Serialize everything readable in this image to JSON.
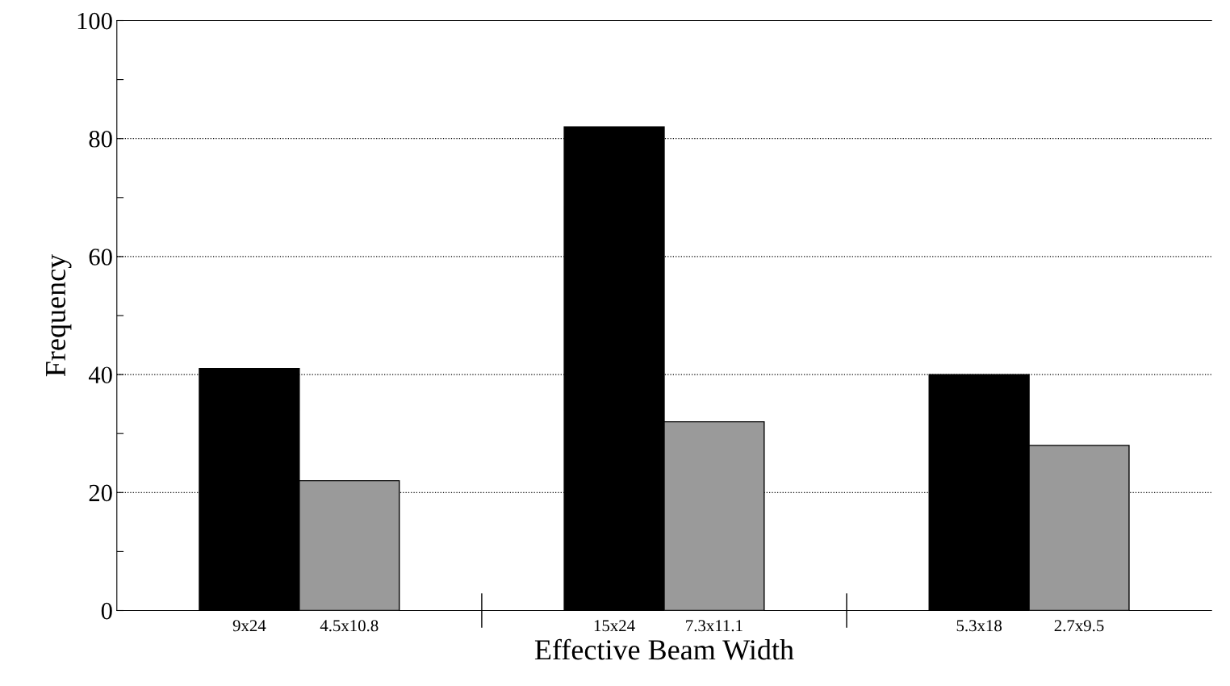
{
  "chart_data": {
    "type": "bar",
    "xlabel": "Effective Beam Width",
    "ylabel": "Frequency",
    "categories": [
      "9x24",
      "4.5x10.8",
      "15x24",
      "7.3x11.1",
      "5.3x18",
      "2.7x9.5"
    ],
    "values": [
      41,
      22,
      82,
      32,
      40,
      28
    ],
    "colors": [
      "#000000",
      "#9a9a9a",
      "#000000",
      "#9a9a9a",
      "#000000",
      "#9a9a9a"
    ],
    "ylim": [
      0,
      100
    ],
    "yticks": [
      0,
      {
        "value": 10,
        "label": null
      },
      20,
      {
        "value": 30,
        "label": null
      },
      40,
      {
        "value": 50,
        "label": null
      },
      60,
      {
        "value": 70,
        "label": null
      },
      80,
      {
        "value": 90,
        "label": null
      },
      100
    ],
    "grid": "y"
  }
}
